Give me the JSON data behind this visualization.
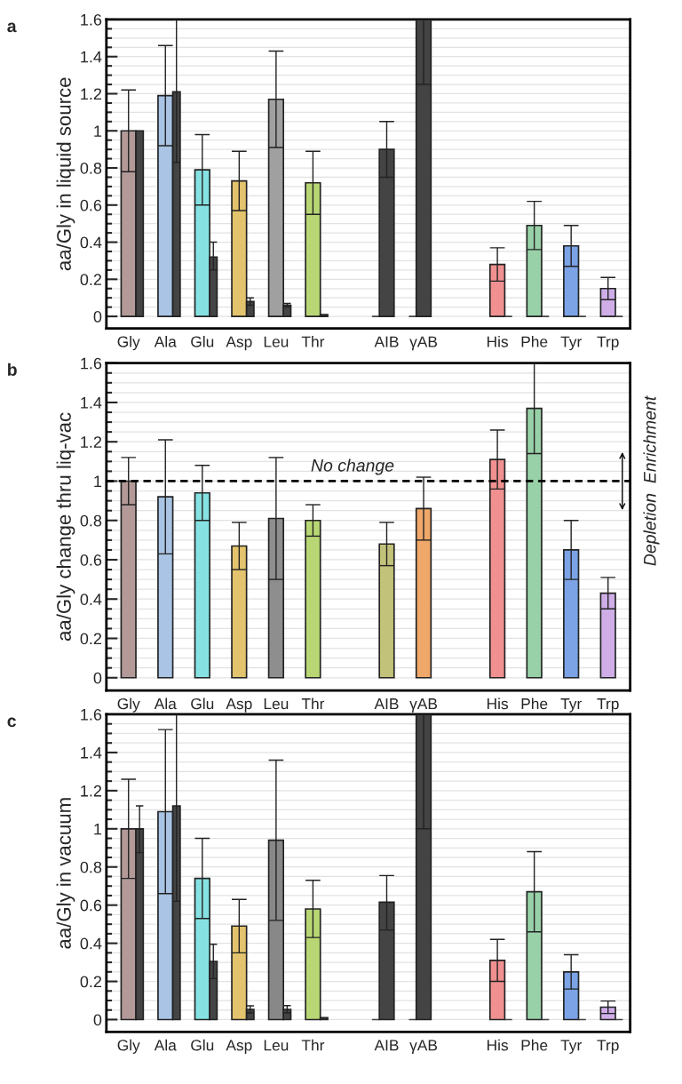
{
  "chart_data": [
    {
      "type": "bar",
      "title": "a",
      "ylabel": "aa/Gly in liquid source",
      "categories": [
        "Gly",
        "Ala",
        "Glu",
        "Asp",
        "Leu",
        "Thr",
        null,
        "AIB",
        "γAB",
        null,
        "His",
        "Phe",
        "Tyr",
        "Trp"
      ],
      "series": [
        {
          "colors": [
            "#b39a98",
            "#a9c4e4",
            "#86e2e2",
            "#e3c36d",
            "#a0a0a0",
            "#b8d774",
            null,
            "#444444",
            "#444444",
            null,
            "#f09090",
            "#98d1a8",
            "#7ba3e6",
            "#cfaee8"
          ],
          "values": [
            1.0,
            1.19,
            0.79,
            0.73,
            1.17,
            0.72,
            null,
            0,
            0,
            null,
            0.28,
            0.49,
            0.38,
            0.15
          ],
          "errors": [
            [
              0.78,
              1.22
            ],
            [
              0.92,
              1.46
            ],
            [
              0.6,
              0.98
            ],
            [
              0.57,
              0.89
            ],
            [
              0.91,
              1.43
            ],
            [
              0.55,
              0.89
            ],
            null,
            null,
            null,
            null,
            [
              0.19,
              0.37
            ],
            [
              0.36,
              0.62
            ],
            [
              0.27,
              0.49
            ],
            [
              0.09,
              0.21
            ]
          ]
        },
        {
          "color": "#444444",
          "values": [
            1.0,
            1.21,
            0.32,
            0.08,
            0.06,
            0.01,
            null,
            0.9,
            1.6,
            null,
            0,
            0,
            0,
            0
          ],
          "errors": [
            null,
            [
              0.83,
              1.6
            ],
            [
              0.25,
              0.4
            ],
            [
              0.06,
              0.1
            ],
            [
              0.05,
              0.07
            ],
            null,
            null,
            [
              0.75,
              1.05
            ],
            [
              1.25,
              1.6
            ],
            null,
            null,
            null,
            null,
            null
          ]
        }
      ],
      "ylim": [
        -0.065,
        1.6
      ],
      "yticks": [
        0,
        {
          "value": 0.05,
          "label": null
        },
        {
          "value": 0.1,
          "label": null
        },
        {
          "value": 0.15,
          "label": null
        },
        0.2,
        {
          "value": 0.25,
          "label": null
        },
        {
          "value": 0.3,
          "label": null
        },
        {
          "value": 0.35,
          "label": null
        },
        0.4,
        {
          "value": 0.45,
          "label": null
        },
        {
          "value": 0.5,
          "label": null
        },
        {
          "value": 0.55,
          "label": null
        },
        0.6,
        {
          "value": 0.65,
          "label": null
        },
        {
          "value": 0.7,
          "label": null
        },
        {
          "value": 0.75,
          "label": null
        },
        0.8,
        {
          "value": 0.85,
          "label": null
        },
        {
          "value": 0.9,
          "label": null
        },
        {
          "value": 0.95,
          "label": null
        },
        1,
        {
          "value": 1.05,
          "label": null
        },
        {
          "value": 1.1,
          "label": null
        },
        {
          "value": 1.15,
          "label": null
        },
        1.2,
        {
          "value": 1.25,
          "label": null
        },
        {
          "value": 1.3,
          "label": null
        },
        {
          "value": 1.35,
          "label": null
        },
        1.4,
        {
          "value": 1.45,
          "label": null
        },
        {
          "value": 1.5,
          "label": null
        },
        {
          "value": 1.55,
          "label": null
        },
        1.6
      ],
      "grid": "y"
    },
    {
      "type": "bar",
      "title": "b",
      "ylabel": "aa/Gly change thru liq-vac",
      "categories": [
        "Gly",
        "Ala",
        "Glu",
        "Asp",
        "Leu",
        "Thr",
        null,
        "AIB",
        "γAB",
        null,
        "His",
        "Phe",
        "Tyr",
        "Trp"
      ],
      "colors": [
        "#b39a98",
        "#a9c4e4",
        "#86e2e2",
        "#e3c36d",
        "#8e8e8e",
        "#b8d774",
        null,
        "#c2c27a",
        "#f0a86a",
        null,
        "#f09090",
        "#98d1a8",
        "#7ba3e6",
        "#cfaee8"
      ],
      "values": [
        1.0,
        0.92,
        0.94,
        0.67,
        0.81,
        0.8,
        null,
        0.68,
        0.86,
        null,
        1.11,
        1.37,
        0.65,
        0.43
      ],
      "errors": [
        [
          0.88,
          1.12
        ],
        [
          0.63,
          1.21
        ],
        [
          0.8,
          1.08
        ],
        [
          0.55,
          0.79
        ],
        [
          0.5,
          1.12
        ],
        [
          0.72,
          0.88
        ],
        null,
        [
          0.57,
          0.79
        ],
        [
          0.7,
          1.02
        ],
        null,
        [
          0.96,
          1.26
        ],
        [
          1.14,
          1.6
        ],
        [
          0.5,
          0.8
        ],
        [
          0.35,
          0.51
        ]
      ],
      "ref_lines": [
        {
          "axis": "y",
          "value": 1,
          "label": "No change",
          "line_style": "dashed",
          "color": "#000000"
        }
      ],
      "annotations": [
        "Depletion  Enrichment"
      ],
      "ylim": [
        -0.065,
        1.6
      ],
      "yticks": [
        0,
        {
          "value": 0.05,
          "label": null
        },
        {
          "value": 0.1,
          "label": null
        },
        {
          "value": 0.15,
          "label": null
        },
        0.2,
        {
          "value": 0.25,
          "label": null
        },
        {
          "value": 0.3,
          "label": null
        },
        {
          "value": 0.35,
          "label": null
        },
        0.4,
        {
          "value": 0.45,
          "label": null
        },
        {
          "value": 0.5,
          "label": null
        },
        {
          "value": 0.55,
          "label": null
        },
        0.6,
        {
          "value": 0.65,
          "label": null
        },
        {
          "value": 0.7,
          "label": null
        },
        {
          "value": 0.75,
          "label": null
        },
        0.8,
        {
          "value": 0.85,
          "label": null
        },
        {
          "value": 0.9,
          "label": null
        },
        {
          "value": 0.95,
          "label": null
        },
        1,
        {
          "value": 1.05,
          "label": null
        },
        {
          "value": 1.1,
          "label": null
        },
        {
          "value": 1.15,
          "label": null
        },
        1.2,
        {
          "value": 1.25,
          "label": null
        },
        {
          "value": 1.3,
          "label": null
        },
        {
          "value": 1.35,
          "label": null
        },
        1.4,
        {
          "value": 1.45,
          "label": null
        },
        {
          "value": 1.5,
          "label": null
        },
        {
          "value": 1.55,
          "label": null
        },
        1.6
      ],
      "grid": "y"
    },
    {
      "type": "bar",
      "title": "c",
      "ylabel": "aa/Gly in vacuum",
      "categories": [
        "Gly",
        "Ala",
        "Glu",
        "Asp",
        "Leu",
        "Thr",
        null,
        "AIB",
        "γAB",
        null,
        "His",
        "Phe",
        "Tyr",
        "Trp"
      ],
      "series": [
        {
          "colors": [
            "#b39a98",
            "#a9c4e4",
            "#86e2e2",
            "#e3c36d",
            "#888888",
            "#b8d774",
            null,
            "#444444",
            "#444444",
            null,
            "#f09090",
            "#98d1a8",
            "#7ba3e6",
            "#cfaee8"
          ],
          "values": [
            1.0,
            1.09,
            0.74,
            0.49,
            0.94,
            0.58,
            null,
            0,
            0,
            null,
            0.31,
            0.67,
            0.25,
            0.065
          ],
          "errors": [
            [
              0.74,
              1.26
            ],
            [
              0.66,
              1.52
            ],
            [
              0.53,
              0.95
            ],
            [
              0.35,
              0.63
            ],
            [
              0.52,
              1.36
            ],
            [
              0.43,
              0.73
            ],
            null,
            null,
            null,
            null,
            [
              0.2,
              0.42
            ],
            [
              0.46,
              0.88
            ],
            [
              0.16,
              0.34
            ],
            [
              0.032,
              0.097
            ]
          ]
        },
        {
          "color": "#444444",
          "values": [
            1.0,
            1.12,
            0.305,
            0.053,
            0.053,
            0.01,
            null,
            0.615,
            1.6,
            null,
            0,
            0,
            0,
            0
          ],
          "errors": [
            [
              0.875,
              1.12
            ],
            [
              0.62,
              1.6
            ],
            [
              0.215,
              0.395
            ],
            [
              0.035,
              0.072
            ],
            [
              0.035,
              0.073
            ],
            null,
            null,
            [
              0.47,
              0.755
            ],
            [
              1.0,
              1.6
            ],
            null,
            null,
            null,
            null,
            null
          ]
        }
      ],
      "ylim": [
        -0.065,
        1.6
      ],
      "yticks": [
        0,
        {
          "value": 0.05,
          "label": null
        },
        {
          "value": 0.1,
          "label": null
        },
        {
          "value": 0.15,
          "label": null
        },
        0.2,
        {
          "value": 0.25,
          "label": null
        },
        {
          "value": 0.3,
          "label": null
        },
        {
          "value": 0.35,
          "label": null
        },
        0.4,
        {
          "value": 0.45,
          "label": null
        },
        {
          "value": 0.5,
          "label": null
        },
        {
          "value": 0.55,
          "label": null
        },
        0.6,
        {
          "value": 0.65,
          "label": null
        },
        {
          "value": 0.7,
          "label": null
        },
        {
          "value": 0.75,
          "label": null
        },
        0.8,
        {
          "value": 0.85,
          "label": null
        },
        {
          "value": 0.9,
          "label": null
        },
        {
          "value": 0.95,
          "label": null
        },
        1,
        {
          "value": 1.05,
          "label": null
        },
        {
          "value": 1.1,
          "label": null
        },
        {
          "value": 1.15,
          "label": null
        },
        1.2,
        {
          "value": 1.25,
          "label": null
        },
        {
          "value": 1.3,
          "label": null
        },
        {
          "value": 1.35,
          "label": null
        },
        1.4,
        {
          "value": 1.45,
          "label": null
        },
        {
          "value": 1.5,
          "label": null
        },
        {
          "value": 1.55,
          "label": null
        },
        1.6
      ],
      "grid": "y"
    }
  ]
}
